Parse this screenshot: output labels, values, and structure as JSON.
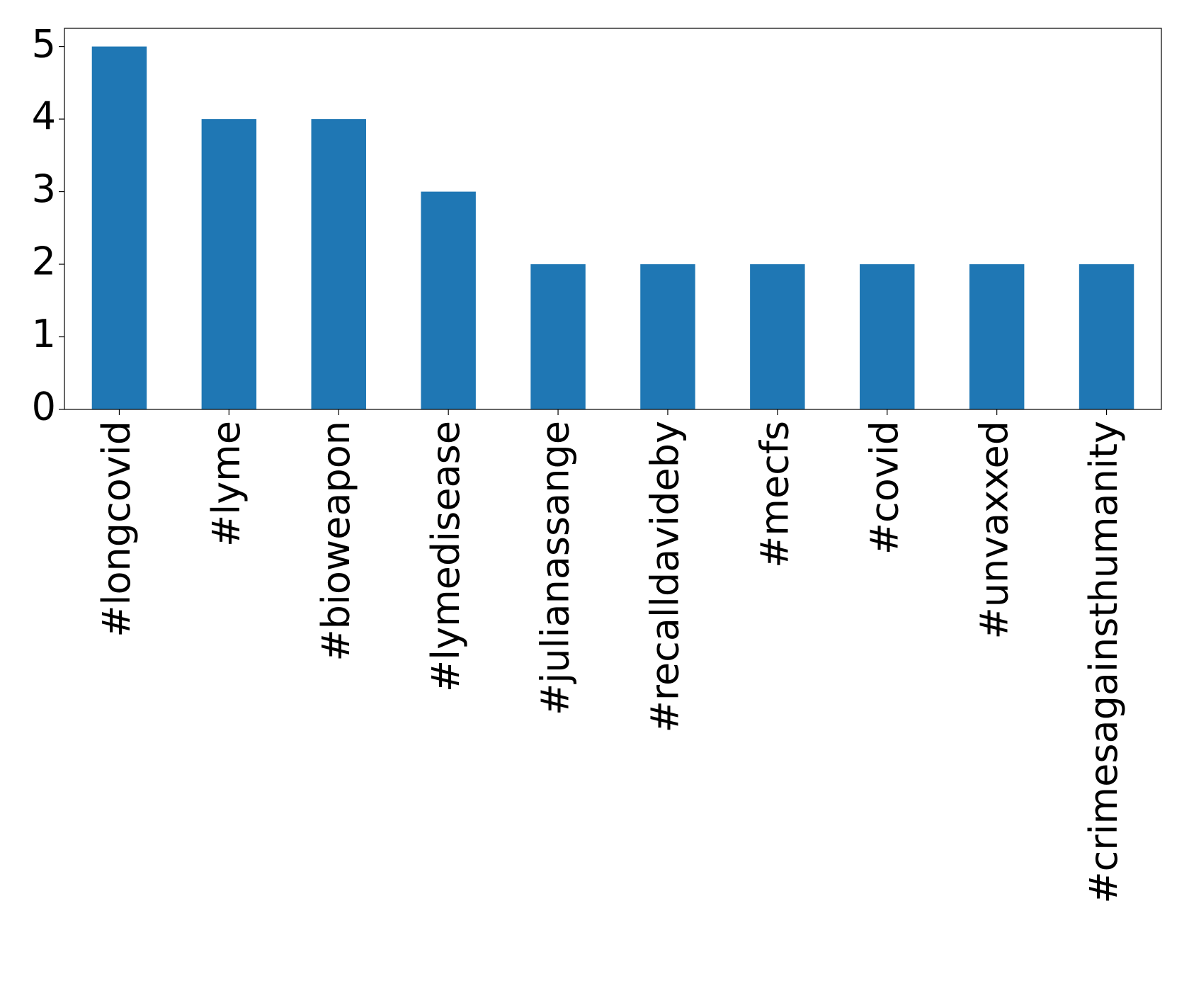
{
  "chart_data": {
    "type": "bar",
    "categories": [
      "#longcovid",
      "#lyme",
      "#bioweapon",
      "#lymedisease",
      "#julianassange",
      "#recalldavideby",
      "#mecfs",
      "#covid",
      "#unvaxxed",
      "#crimesagainsthumanity"
    ],
    "values": [
      5,
      4,
      4,
      3,
      2,
      2,
      2,
      2,
      2,
      2
    ],
    "color": "#1f77b4",
    "ylim": [
      0,
      5.25
    ],
    "yticks": [
      0,
      1,
      2,
      3,
      4,
      5
    ],
    "grid": false
  }
}
